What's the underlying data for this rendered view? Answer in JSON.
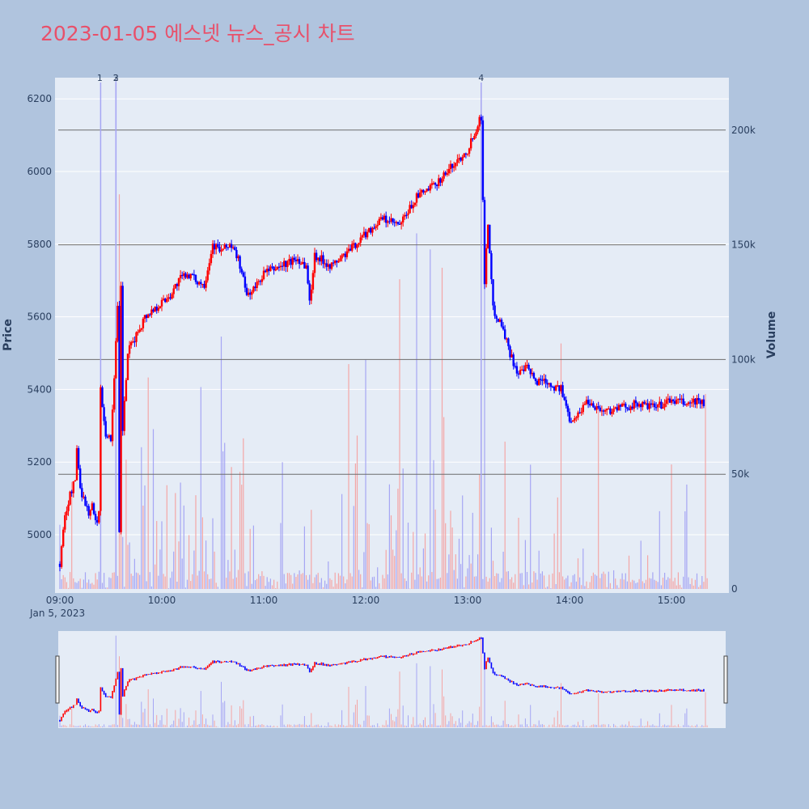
{
  "title": "2023-01-05 에스넷 뉴스_공시 차트",
  "colors": {
    "background": "#b0c4de",
    "plot_bg": "#e5ecf6",
    "title": "#e8506a",
    "up": "#ff0000",
    "down": "#0000ff",
    "vol_up": "#f4a6a6",
    "vol_down": "#a6a6f4",
    "hline": "#6d6d6d",
    "grid": "#ffffff"
  },
  "chart_data": {
    "type": "candlestick",
    "xlabel_date": "Jan 5, 2023",
    "ylabel": "Price",
    "ylabel2": "Volume",
    "x_ticks": [
      "09:00",
      "10:00",
      "11:00",
      "12:00",
      "13:00",
      "14:00",
      "15:00"
    ],
    "y_ticks": [
      5000,
      5200,
      5400,
      5600,
      5800,
      6000,
      6200
    ],
    "y2_ticks": [
      "0",
      "50k",
      "100k",
      "150k",
      "200k"
    ],
    "ylim": [
      4860,
      6255
    ],
    "y2lim": [
      0,
      222000
    ],
    "hlines_volume": [
      50000,
      100000,
      150000,
      200000
    ],
    "annotations": [
      {
        "label": "1",
        "time": "09:24"
      },
      {
        "label": "2",
        "time": "09:33"
      },
      {
        "label": "3",
        "time": "09:33"
      },
      {
        "label": "4",
        "time": "13:08"
      }
    ],
    "price_path": [
      [
        "09:00",
        4920
      ],
      [
        "09:03",
        5050
      ],
      [
        "09:06",
        5110
      ],
      [
        "09:09",
        5150
      ],
      [
        "09:10",
        5240
      ],
      [
        "09:12",
        5130
      ],
      [
        "09:14",
        5100
      ],
      [
        "09:17",
        5060
      ],
      [
        "09:19",
        5080
      ],
      [
        "09:21",
        5030
      ],
      [
        "09:23",
        5060
      ],
      [
        "09:24",
        5400
      ],
      [
        "09:27",
        5280
      ],
      [
        "09:30",
        5260
      ],
      [
        "09:32",
        5440
      ],
      [
        "09:34",
        5620
      ],
      [
        "09:35",
        5000
      ],
      [
        "09:36",
        5680
      ],
      [
        "09:37",
        5290
      ],
      [
        "09:40",
        5500
      ],
      [
        "09:45",
        5550
      ],
      [
        "09:50",
        5600
      ],
      [
        "09:55",
        5620
      ],
      [
        "10:00",
        5640
      ],
      [
        "10:05",
        5660
      ],
      [
        "10:10",
        5700
      ],
      [
        "10:15",
        5720
      ],
      [
        "10:20",
        5700
      ],
      [
        "10:25",
        5690
      ],
      [
        "10:30",
        5800
      ],
      [
        "10:35",
        5780
      ],
      [
        "10:40",
        5800
      ],
      [
        "10:45",
        5760
      ],
      [
        "10:50",
        5660
      ],
      [
        "10:55",
        5680
      ],
      [
        "11:00",
        5720
      ],
      [
        "11:10",
        5740
      ],
      [
        "11:20",
        5760
      ],
      [
        "11:25",
        5740
      ],
      [
        "11:27",
        5640
      ],
      [
        "11:30",
        5770
      ],
      [
        "11:40",
        5740
      ],
      [
        "11:50",
        5780
      ],
      [
        "12:00",
        5830
      ],
      [
        "12:10",
        5870
      ],
      [
        "12:20",
        5850
      ],
      [
        "12:30",
        5930
      ],
      [
        "12:40",
        5960
      ],
      [
        "12:50",
        6010
      ],
      [
        "13:00",
        6060
      ],
      [
        "13:05",
        6120
      ],
      [
        "13:08",
        6150
      ],
      [
        "13:10",
        5700
      ],
      [
        "13:12",
        5860
      ],
      [
        "13:15",
        5620
      ],
      [
        "13:20",
        5580
      ],
      [
        "13:25",
        5500
      ],
      [
        "13:30",
        5440
      ],
      [
        "13:35",
        5460
      ],
      [
        "13:40",
        5420
      ],
      [
        "13:45",
        5430
      ],
      [
        "13:50",
        5410
      ],
      [
        "13:55",
        5400
      ],
      [
        "14:00",
        5320
      ],
      [
        "14:05",
        5330
      ],
      [
        "14:10",
        5370
      ],
      [
        "14:20",
        5340
      ],
      [
        "14:30",
        5350
      ],
      [
        "14:40",
        5360
      ],
      [
        "14:50",
        5350
      ],
      [
        "15:00",
        5370
      ],
      [
        "15:10",
        5360
      ],
      [
        "15:15",
        5370
      ],
      [
        "15:19",
        5360
      ]
    ],
    "volume_spikes": [
      [
        "09:33",
        222000
      ],
      [
        "09:35",
        172000
      ],
      [
        "12:30",
        155000
      ],
      [
        "12:38",
        148000
      ],
      [
        "13:08",
        218000
      ],
      [
        "13:10",
        162000
      ],
      [
        "12:45",
        140000
      ],
      [
        "12:20",
        135000
      ],
      [
        "12:00",
        100000
      ],
      [
        "13:55",
        107000
      ],
      [
        "10:35",
        110000
      ],
      [
        "11:50",
        98000
      ],
      [
        "15:20",
        85000
      ]
    ]
  }
}
